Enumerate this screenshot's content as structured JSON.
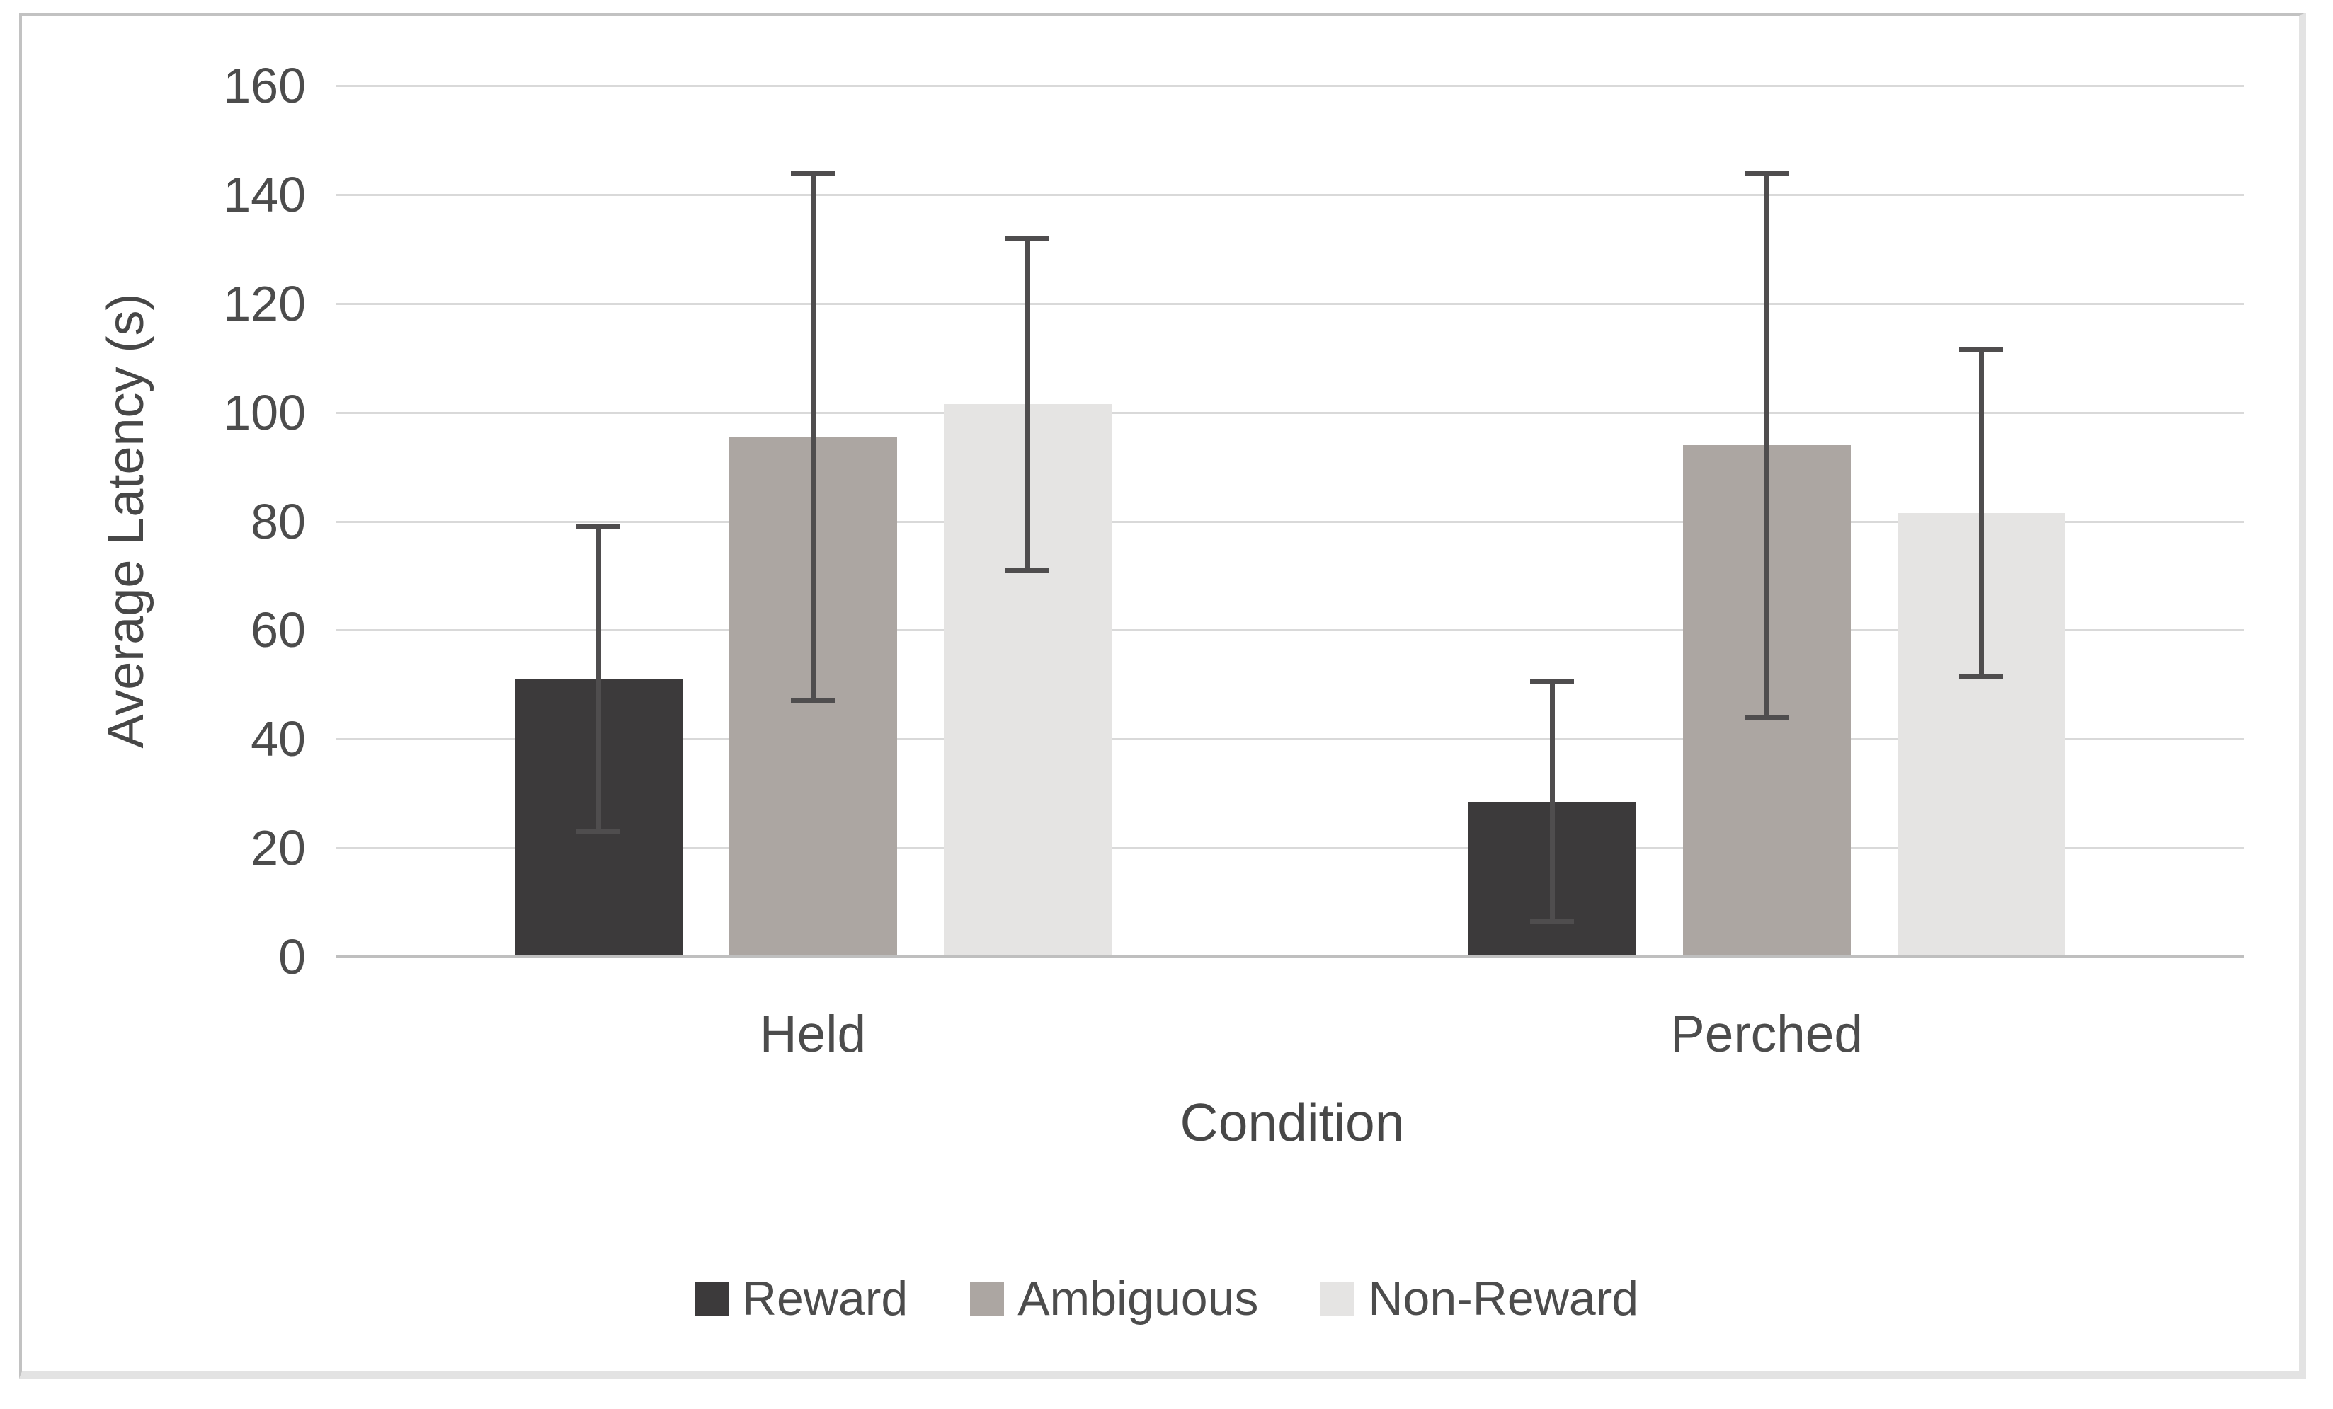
{
  "figure": {
    "background": "#ffffff",
    "border_color": "#c2c2c2",
    "border_shadow_color": "#e3e3e3"
  },
  "chart_data": {
    "type": "bar",
    "title": "",
    "xlabel": "Condition",
    "ylabel": "Average Latency (s)",
    "categories": [
      "Held",
      "Perched"
    ],
    "series": [
      {
        "name": "Reward",
        "color": "#3c3a3b",
        "values": [
          51,
          28.5
        ],
        "errors": [
          28,
          22
        ]
      },
      {
        "name": "Ambiguous",
        "color": "#aca6a2",
        "values": [
          95.5,
          94
        ],
        "errors": [
          48.5,
          50
        ]
      },
      {
        "name": "Non-Reward",
        "color": "#e5e4e3",
        "values": [
          101.5,
          81.5
        ],
        "errors": [
          30.5,
          30
        ]
      }
    ],
    "ylim": [
      0,
      160
    ],
    "yticks": [
      0,
      20,
      40,
      60,
      80,
      100,
      120,
      140,
      160
    ],
    "grid": true,
    "legend_position": "bottom",
    "error_bars": true,
    "gridline_color": "#d9d9d9",
    "axis_line_color": "#bfbfbf",
    "errorbar_color": "#4f4d4e",
    "text_color": "#4c4c4c"
  }
}
